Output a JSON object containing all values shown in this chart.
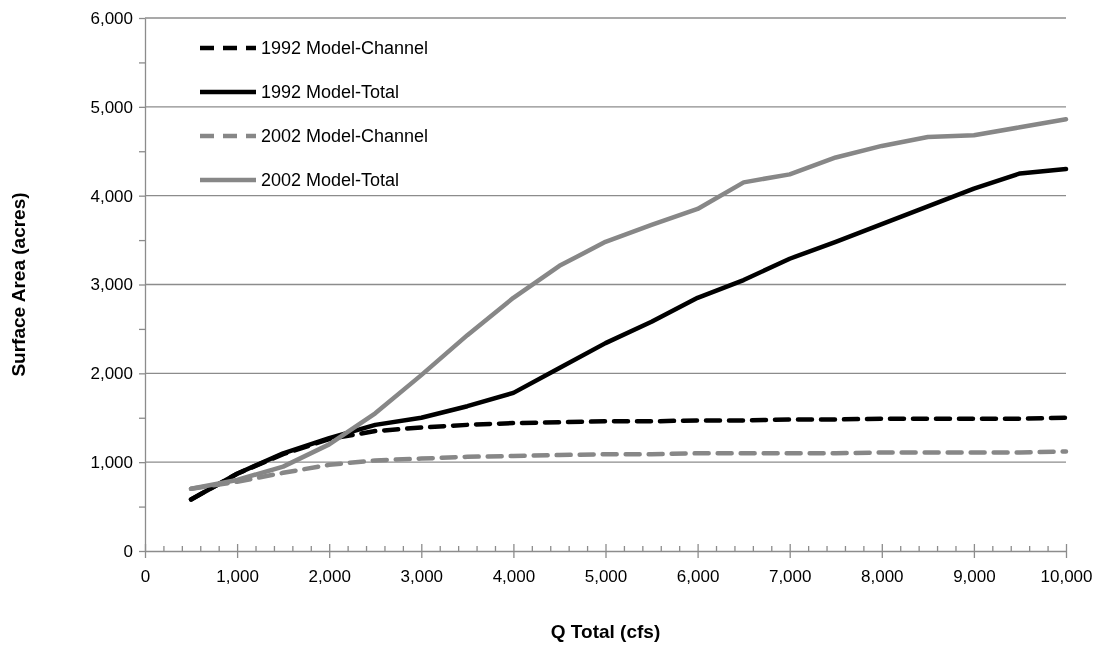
{
  "chart_data": {
    "type": "line",
    "xlabel": "Q Total (cfs)",
    "ylabel": "Surface Area (acres)",
    "x": [
      500,
      1000,
      1500,
      2000,
      2500,
      3000,
      3500,
      4000,
      4500,
      5000,
      5500,
      6000,
      6500,
      7000,
      7500,
      8000,
      8500,
      9000,
      9500,
      10000
    ],
    "series": [
      {
        "name": "1992 Model-Channel",
        "color": "#000000",
        "line_style": "dashed",
        "values": [
          580,
          870,
          1090,
          1260,
          1350,
          1390,
          1420,
          1440,
          1450,
          1460,
          1460,
          1470,
          1470,
          1480,
          1480,
          1490,
          1490,
          1490,
          1490,
          1500
        ]
      },
      {
        "name": "1992 Model-Total",
        "color": "#000000",
        "line_style": "solid",
        "values": [
          580,
          870,
          1100,
          1270,
          1420,
          1500,
          1630,
          1780,
          2060,
          2340,
          2580,
          2850,
          3050,
          3290,
          3480,
          3680,
          3880,
          4080,
          4250,
          4300
        ]
      },
      {
        "name": "2002 Model-Channel",
        "color": "#878787",
        "line_style": "dashed",
        "values": [
          700,
          780,
          880,
          970,
          1020,
          1040,
          1060,
          1070,
          1080,
          1090,
          1090,
          1100,
          1100,
          1100,
          1100,
          1110,
          1110,
          1110,
          1110,
          1120
        ]
      },
      {
        "name": "2002 Model-Total",
        "color": "#878787",
        "line_style": "solid",
        "values": [
          700,
          800,
          950,
          1200,
          1550,
          1980,
          2430,
          2850,
          3210,
          3480,
          3670,
          3850,
          4150,
          4240,
          4430,
          4560,
          4660,
          4680,
          4770,
          4860
        ]
      }
    ],
    "xlim": [
      0,
      10000
    ],
    "ylim": [
      0,
      6000
    ],
    "xticks": [
      {
        "value": 0,
        "label": "0"
      },
      {
        "value": 200,
        "label": null
      },
      {
        "value": 400,
        "label": null
      },
      {
        "value": 600,
        "label": null
      },
      {
        "value": 800,
        "label": null
      },
      {
        "value": 1000,
        "label": "1,000"
      },
      {
        "value": 1200,
        "label": null
      },
      {
        "value": 1400,
        "label": null
      },
      {
        "value": 1600,
        "label": null
      },
      {
        "value": 1800,
        "label": null
      },
      {
        "value": 2000,
        "label": "2,000"
      },
      {
        "value": 2200,
        "label": null
      },
      {
        "value": 2400,
        "label": null
      },
      {
        "value": 2600,
        "label": null
      },
      {
        "value": 2800,
        "label": null
      },
      {
        "value": 3000,
        "label": "3,000"
      },
      {
        "value": 3200,
        "label": null
      },
      {
        "value": 3400,
        "label": null
      },
      {
        "value": 3600,
        "label": null
      },
      {
        "value": 3800,
        "label": null
      },
      {
        "value": 4000,
        "label": "4,000"
      },
      {
        "value": 4200,
        "label": null
      },
      {
        "value": 4400,
        "label": null
      },
      {
        "value": 4600,
        "label": null
      },
      {
        "value": 4800,
        "label": null
      },
      {
        "value": 5000,
        "label": "5,000"
      },
      {
        "value": 5200,
        "label": null
      },
      {
        "value": 5400,
        "label": null
      },
      {
        "value": 5600,
        "label": null
      },
      {
        "value": 5800,
        "label": null
      },
      {
        "value": 6000,
        "label": "6,000"
      },
      {
        "value": 6200,
        "label": null
      },
      {
        "value": 6400,
        "label": null
      },
      {
        "value": 6600,
        "label": null
      },
      {
        "value": 6800,
        "label": null
      },
      {
        "value": 7000,
        "label": "7,000"
      },
      {
        "value": 7200,
        "label": null
      },
      {
        "value": 7400,
        "label": null
      },
      {
        "value": 7600,
        "label": null
      },
      {
        "value": 7800,
        "label": null
      },
      {
        "value": 8000,
        "label": "8,000"
      },
      {
        "value": 8200,
        "label": null
      },
      {
        "value": 8400,
        "label": null
      },
      {
        "value": 8600,
        "label": null
      },
      {
        "value": 8800,
        "label": null
      },
      {
        "value": 9000,
        "label": "9,000"
      },
      {
        "value": 9200,
        "label": null
      },
      {
        "value": 9400,
        "label": null
      },
      {
        "value": 9600,
        "label": null
      },
      {
        "value": 9800,
        "label": null
      },
      {
        "value": 10000,
        "label": "10,000"
      }
    ],
    "yticks": [
      {
        "value": 0,
        "label": "0"
      },
      {
        "value": 500,
        "label": null
      },
      {
        "value": 1000,
        "label": "1,000"
      },
      {
        "value": 1500,
        "label": null
      },
      {
        "value": 2000,
        "label": "2,000"
      },
      {
        "value": 2500,
        "label": null
      },
      {
        "value": 3000,
        "label": "3,000"
      },
      {
        "value": 3500,
        "label": null
      },
      {
        "value": 4000,
        "label": "4,000"
      },
      {
        "value": 4500,
        "label": null
      },
      {
        "value": 5000,
        "label": "5,000"
      },
      {
        "value": 5500,
        "label": null
      },
      {
        "value": 6000,
        "label": "6,000"
      }
    ],
    "grid": "y",
    "legend": "top left",
    "marker": "none"
  }
}
